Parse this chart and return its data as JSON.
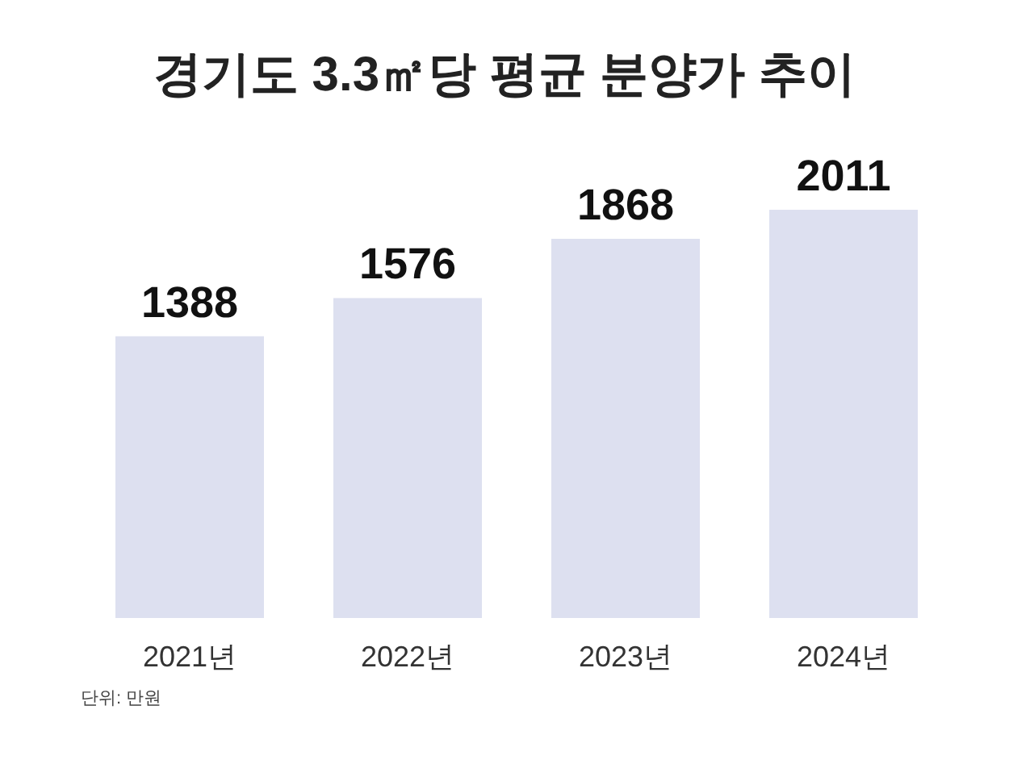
{
  "chart_data": {
    "type": "bar",
    "title": "경기도 3.3㎡당 평균 분양가 추이",
    "categories": [
      "2021년",
      "2022년",
      "2023년",
      "2024년"
    ],
    "values": [
      1388,
      1576,
      1868,
      2011
    ],
    "color": "#dde0f0",
    "data_labels": true,
    "annotations": [
      "단위: 만원"
    ]
  }
}
